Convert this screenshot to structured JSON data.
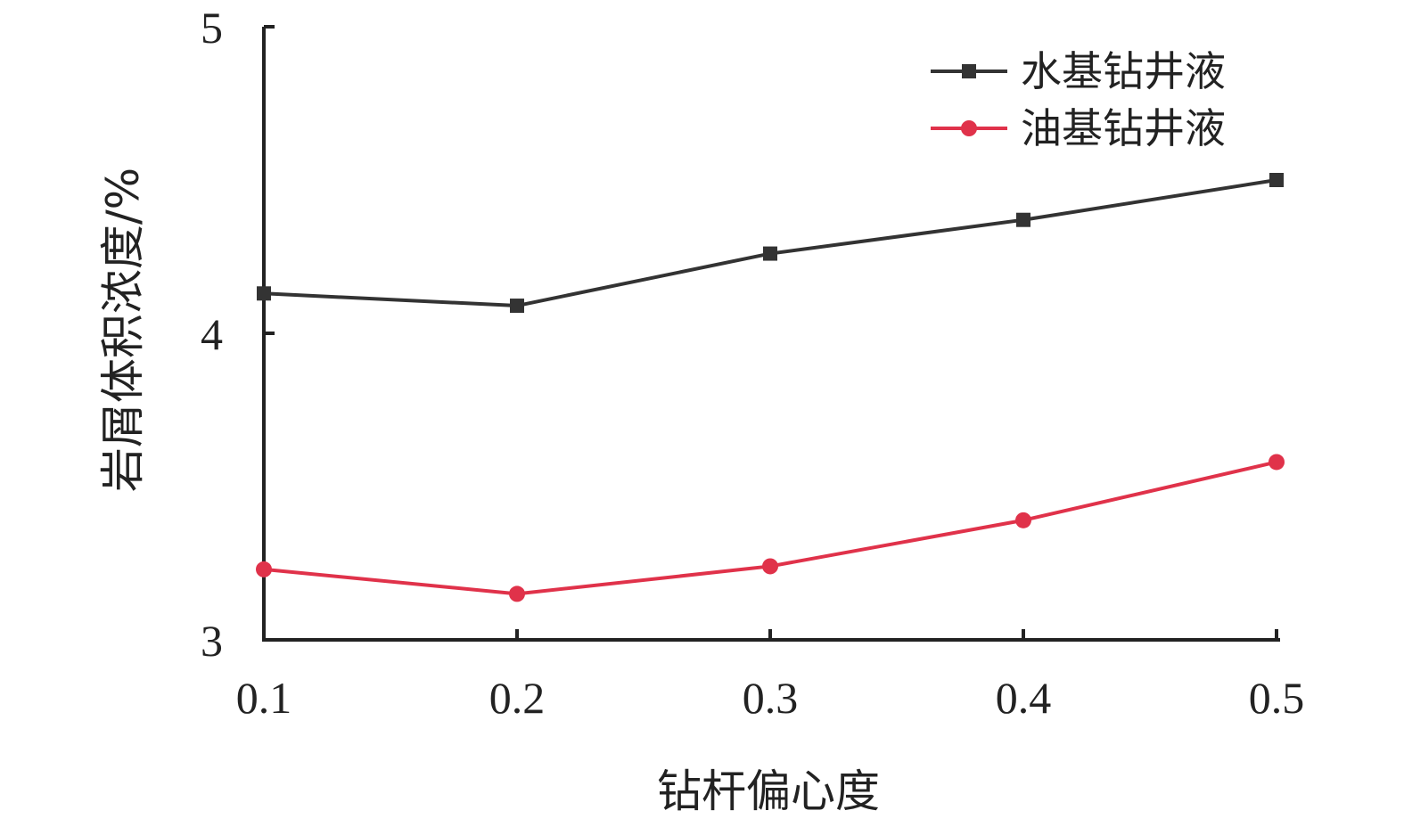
{
  "chart_data": {
    "type": "line",
    "title": "",
    "xlabel": "钻杆偏心度",
    "ylabel": "岩屑体积浓度/%",
    "x": [
      0.1,
      0.2,
      0.3,
      0.4,
      0.5
    ],
    "x_tick_labels": [
      "0.1",
      "0.2",
      "0.3",
      "0.4",
      "0.5"
    ],
    "y_tick_labels": [
      "3",
      "4",
      "5"
    ],
    "y_ticks": [
      3,
      4,
      5
    ],
    "xlim": [
      0.1,
      0.5
    ],
    "ylim": [
      3,
      5
    ],
    "grid": false,
    "legend_position": "top-right",
    "series": [
      {
        "name": "水基钻井液",
        "values": [
          4.13,
          4.09,
          4.26,
          4.37,
          4.5
        ],
        "color": "#333333",
        "marker": "square"
      },
      {
        "name": "油基钻井液",
        "values": [
          3.23,
          3.15,
          3.24,
          3.39,
          3.58
        ],
        "color": "#e0324a",
        "marker": "circle"
      }
    ]
  }
}
